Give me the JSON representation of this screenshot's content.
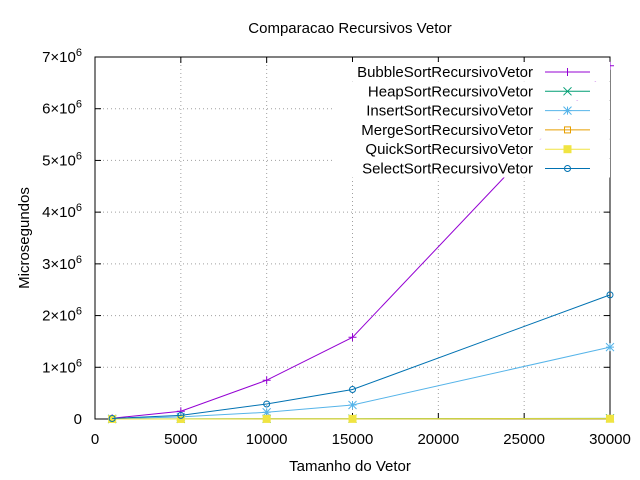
{
  "chart_data": {
    "type": "line",
    "title": "Comparacao Recursivos Vetor",
    "xlabel": "Tamanho do Vetor",
    "ylabel": "Microsegundos",
    "xlim": [
      0,
      30000
    ],
    "ylim": [
      0,
      7000000
    ],
    "xticks": [
      {
        "value": 0,
        "label": "0"
      },
      {
        "value": 5000,
        "label": "5000"
      },
      {
        "value": 10000,
        "label": "10000"
      },
      {
        "value": 15000,
        "label": "15000"
      },
      {
        "value": 20000,
        "label": "20000"
      },
      {
        "value": 25000,
        "label": "25000"
      },
      {
        "value": 30000,
        "label": "30000"
      }
    ],
    "yticks": [
      {
        "value": 0,
        "mant": "0",
        "exp": ""
      },
      {
        "value": 1000000,
        "mant": "1×10",
        "exp": "6"
      },
      {
        "value": 2000000,
        "mant": "2×10",
        "exp": "6"
      },
      {
        "value": 3000000,
        "mant": "3×10",
        "exp": "6"
      },
      {
        "value": 4000000,
        "mant": "4×10",
        "exp": "6"
      },
      {
        "value": 5000000,
        "mant": "5×10",
        "exp": "6"
      },
      {
        "value": 6000000,
        "mant": "6×10",
        "exp": "6"
      },
      {
        "value": 7000000,
        "mant": "7×10",
        "exp": "6"
      }
    ],
    "grid": true,
    "legend_position": "top-right",
    "x": [
      1000,
      5000,
      10000,
      15000,
      30000
    ],
    "series": [
      {
        "name": "BubbleSortRecursivoVetor",
        "color": "#9400d3",
        "marker": "plus",
        "values": [
          15000,
          150000,
          750000,
          1580000,
          6830000
        ]
      },
      {
        "name": "HeapSortRecursivoVetor",
        "color": "#009e73",
        "marker": "cross",
        "values": [
          500,
          2000,
          4000,
          6000,
          12000
        ]
      },
      {
        "name": "InsertSortRecursivoVetor",
        "color": "#56b4e9",
        "marker": "star",
        "values": [
          5000,
          40000,
          130000,
          270000,
          1390000
        ]
      },
      {
        "name": "MergeSortRecursivoVetor",
        "color": "#e69f00",
        "marker": "box",
        "values": [
          300,
          1000,
          2000,
          3000,
          6000
        ]
      },
      {
        "name": "QuickSortRecursivoVetor",
        "color": "#f0e442",
        "marker": "filledbox",
        "values": [
          200,
          800,
          1500,
          2500,
          5000
        ]
      },
      {
        "name": "SelectSortRecursivoVetor",
        "color": "#0072b2",
        "marker": "circle",
        "values": [
          10000,
          70000,
          290000,
          570000,
          2400000
        ]
      }
    ]
  }
}
